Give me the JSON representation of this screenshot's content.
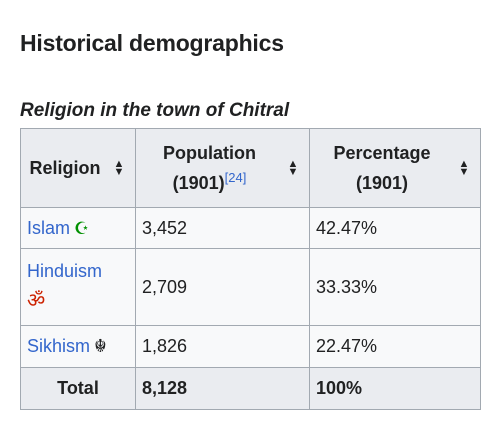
{
  "section": {
    "title": "Historical demographics"
  },
  "table": {
    "caption": "Religion in the town of Chitral",
    "headers": {
      "religion": "Religion",
      "population_line1": "Population",
      "population_line2": "(1901)",
      "population_ref": "[24]",
      "percentage_line1": "Percentage",
      "percentage_line2": "(1901)"
    },
    "rows": [
      {
        "religion": "Islam",
        "icon": "star-and-crescent-icon",
        "population": "3,452",
        "percentage": "42.47%"
      },
      {
        "religion": "Hinduism",
        "icon": "om-icon",
        "population": "2,709",
        "percentage": "33.33%"
      },
      {
        "religion": "Sikhism",
        "icon": "khanda-icon",
        "population": "1,826",
        "percentage": "22.47%"
      }
    ],
    "total": {
      "label": "Total",
      "population": "8,128",
      "percentage": "100%"
    }
  }
}
